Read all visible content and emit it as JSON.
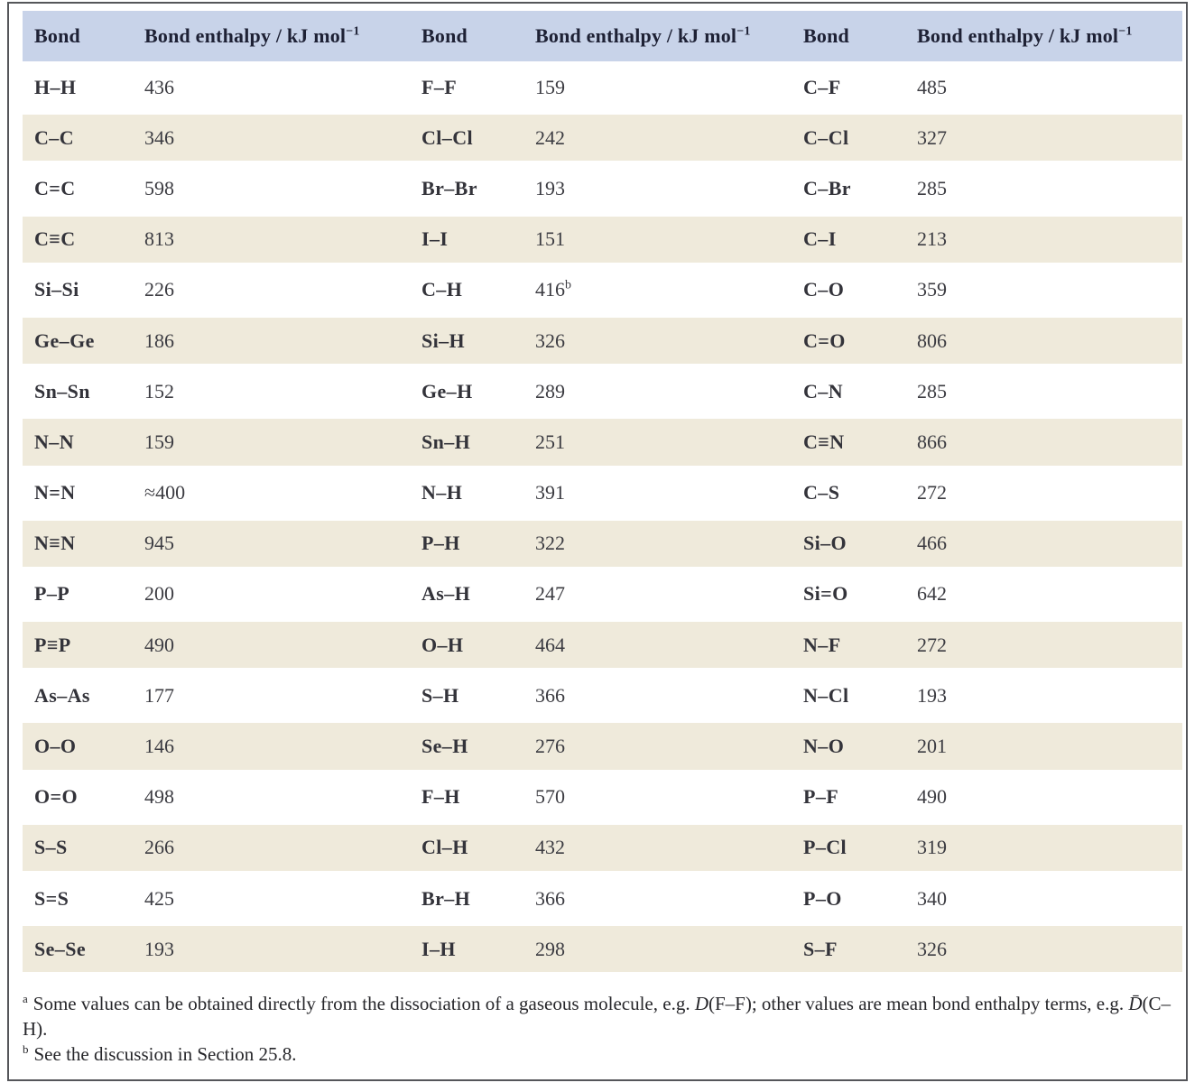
{
  "colors": {
    "header_bg": "#c8d3e9",
    "row_alt_bg": "#efeadb",
    "border": "#55565a"
  },
  "table": {
    "header": {
      "bond_label": "Bond",
      "enthalpy_label_prefix": "Bond enthalpy / kJ mol",
      "enthalpy_label_sup": "−1"
    },
    "rows": [
      {
        "c1_bond": "H–H",
        "c1_val": "436",
        "c2_bond": "F–F",
        "c2_val": "159",
        "c3_bond": "C–F",
        "c3_val": "485"
      },
      {
        "c1_bond": "C–C",
        "c1_val": "346",
        "c2_bond": "Cl–Cl",
        "c2_val": "242",
        "c3_bond": "C–Cl",
        "c3_val": "327"
      },
      {
        "c1_bond": "C=C",
        "c1_val": "598",
        "c2_bond": "Br–Br",
        "c2_val": "193",
        "c3_bond": "C–Br",
        "c3_val": "285"
      },
      {
        "c1_bond": "C≡C",
        "c1_val": "813",
        "c2_bond": "I–I",
        "c2_val": "151",
        "c3_bond": "C–I",
        "c3_val": "213"
      },
      {
        "c1_bond": "Si–Si",
        "c1_val": "226",
        "c2_bond": "C–H",
        "c2_val": "416",
        "c2_sup": "b",
        "c3_bond": "C–O",
        "c3_val": "359"
      },
      {
        "c1_bond": "Ge–Ge",
        "c1_val": "186",
        "c2_bond": "Si–H",
        "c2_val": "326",
        "c3_bond": "C=O",
        "c3_val": "806"
      },
      {
        "c1_bond": "Sn–Sn",
        "c1_val": "152",
        "c2_bond": "Ge–H",
        "c2_val": "289",
        "c3_bond": "C–N",
        "c3_val": "285"
      },
      {
        "c1_bond": "N–N",
        "c1_val": "159",
        "c2_bond": "Sn–H",
        "c2_val": "251",
        "c3_bond": "C≡N",
        "c3_val": "866"
      },
      {
        "c1_bond": "N=N",
        "c1_val": "≈400",
        "c2_bond": "N–H",
        "c2_val": "391",
        "c3_bond": "C–S",
        "c3_val": "272"
      },
      {
        "c1_bond": "N≡N",
        "c1_val": "945",
        "c2_bond": "P–H",
        "c2_val": "322",
        "c3_bond": "Si–O",
        "c3_val": "466"
      },
      {
        "c1_bond": "P–P",
        "c1_val": "200",
        "c2_bond": "As–H",
        "c2_val": "247",
        "c3_bond": "Si=O",
        "c3_val": "642"
      },
      {
        "c1_bond": "P≡P",
        "c1_val": "490",
        "c2_bond": "O–H",
        "c2_val": "464",
        "c3_bond": "N–F",
        "c3_val": "272"
      },
      {
        "c1_bond": "As–As",
        "c1_val": "177",
        "c2_bond": "S–H",
        "c2_val": "366",
        "c3_bond": "N–Cl",
        "c3_val": "193"
      },
      {
        "c1_bond": "O–O",
        "c1_val": "146",
        "c2_bond": "Se–H",
        "c2_val": "276",
        "c3_bond": "N–O",
        "c3_val": "201"
      },
      {
        "c1_bond": "O=O",
        "c1_val": "498",
        "c2_bond": "F–H",
        "c2_val": "570",
        "c3_bond": "P–F",
        "c3_val": "490"
      },
      {
        "c1_bond": "S–S",
        "c1_val": "266",
        "c2_bond": "Cl–H",
        "c2_val": "432",
        "c3_bond": "P–Cl",
        "c3_val": "319"
      },
      {
        "c1_bond": "S=S",
        "c1_val": "425",
        "c2_bond": "Br–H",
        "c2_val": "366",
        "c3_bond": "P–O",
        "c3_val": "340"
      },
      {
        "c1_bond": "Se–Se",
        "c1_val": "193",
        "c2_bond": "I–H",
        "c2_val": "298",
        "c3_bond": "S–F",
        "c3_val": "326"
      }
    ]
  },
  "footnotes": {
    "a": {
      "marker": "a",
      "part1": "Some values can be obtained directly from the dissociation of a gaseous molecule, e.g. ",
      "italic1": "D",
      "part2": "(F–F); other values are mean bond enthalpy terms, e.g. ",
      "italic2": "D̄",
      "part3": "(C–H)."
    },
    "b": {
      "marker": "b",
      "text": "See the discussion in Section 25.8."
    }
  }
}
